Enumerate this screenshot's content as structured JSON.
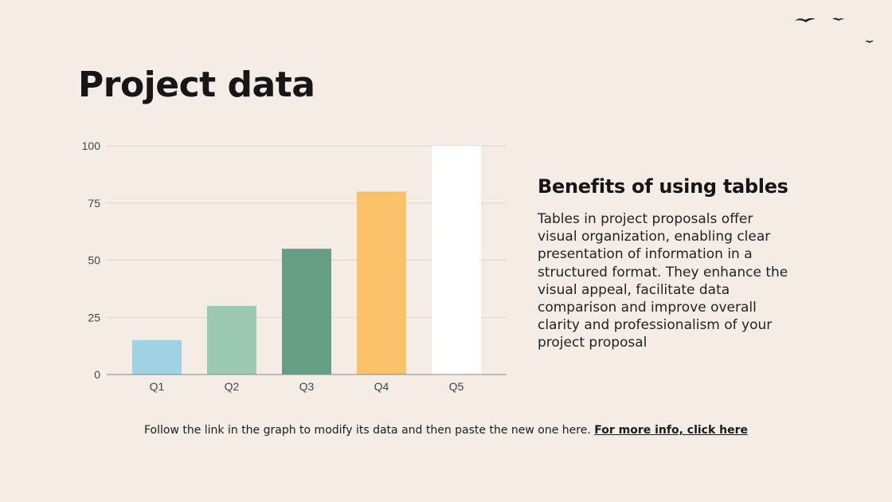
{
  "slide": {
    "title": "Project data",
    "side_heading": "Benefits of using tables",
    "side_body": "Tables in project proposals offer visual organization, enabling clear presentation of information in a structured format. They enhance the visual appeal, facilitate data comparison and improve overall clarity and professionalism of your project proposal",
    "footer_text": "Follow the link in the graph to modify its data and then paste the new one here.",
    "footer_link": "For more info, click here"
  },
  "chart_data": {
    "type": "bar",
    "title": "",
    "xlabel": "",
    "ylabel": "",
    "categories": [
      "Q1",
      "Q2",
      "Q3",
      "Q4",
      "Q5"
    ],
    "values": [
      15,
      30,
      55,
      80,
      100
    ],
    "bar_colors": [
      "#9fd3e3",
      "#9bc9b1",
      "#669e86",
      "#fcc26a",
      "#ffffff"
    ],
    "ylim": [
      0,
      100
    ],
    "yticks": [
      0,
      25,
      50,
      75,
      100
    ],
    "grid": true,
    "legend": "none"
  },
  "colors": {
    "background": "#f5ece6",
    "text": "#161616",
    "grid": "#dcd6d2"
  },
  "decoration": {
    "icon": "birds-icon"
  }
}
